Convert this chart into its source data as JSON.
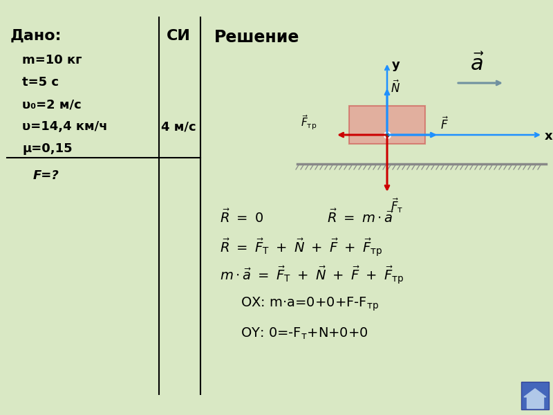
{
  "bg_color": "#d9e8c4",
  "title_dado": "Дано:",
  "title_si": "СИ",
  "title_reshenie": "Решение",
  "dado_texts": [
    "m=10 кг",
    "t=5 с",
    "υ₀=2 м/с",
    "υ=14,4 км/ч",
    "μ=0,15"
  ],
  "si_value": "4 м/с",
  "find_line": "F=?",
  "axis_color": "#1e90ff",
  "arrow_red": "#cc0000",
  "arrow_blue": "#1e90ff",
  "arrow_gray": "#7090a0",
  "box_face": "#e88080",
  "box_edge": "#cc4444",
  "surface_color": "#909090",
  "home_bg": "#4466bb"
}
